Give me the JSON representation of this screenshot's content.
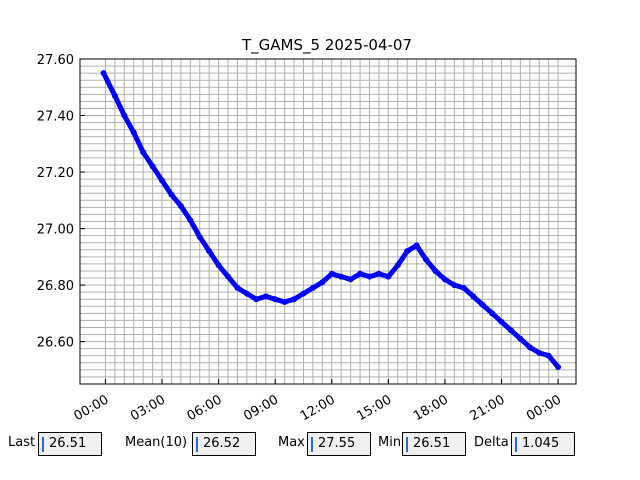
{
  "chart_data": {
    "type": "line",
    "title": "T_GAMS_5 2025-04-07",
    "xlabel": "",
    "ylabel": "",
    "x_ticks": [
      "00:00",
      "03:00",
      "06:00",
      "09:00",
      "12:00",
      "15:00",
      "18:00",
      "21:00",
      "00:00"
    ],
    "y_ticks": [
      "26.60",
      "26.80",
      "27.00",
      "27.20",
      "27.40",
      "27.60"
    ],
    "xlim_hours": [
      -1.35,
      24.95
    ],
    "ylim": [
      26.45,
      27.6
    ],
    "grid": true,
    "series_color": "#0000ff",
    "series": [
      {
        "x_hours": [
          -0.1,
          0.5,
          1.0,
          1.5,
          2.0,
          2.5,
          3.0,
          3.5,
          4.0,
          4.5,
          5.0,
          5.5,
          6.0,
          6.5,
          7.0,
          7.5,
          8.0,
          8.5,
          9.0,
          9.5,
          10.0,
          10.5,
          11.0,
          11.5,
          12.0,
          12.5,
          13.0,
          13.5,
          14.0,
          14.5,
          15.0,
          15.5,
          16.0,
          16.5,
          17.0,
          17.5,
          18.0,
          18.5,
          19.0,
          19.5,
          20.0,
          20.5,
          21.0,
          21.5,
          22.0,
          22.5,
          23.0,
          23.5,
          24.0
        ],
        "values": [
          27.55,
          27.47,
          27.4,
          27.34,
          27.27,
          27.22,
          27.17,
          27.12,
          27.08,
          27.03,
          26.97,
          26.92,
          26.87,
          26.83,
          26.79,
          26.77,
          26.75,
          26.76,
          26.75,
          26.74,
          26.75,
          26.77,
          26.79,
          26.81,
          26.84,
          26.83,
          26.82,
          26.84,
          26.83,
          26.84,
          26.83,
          26.87,
          26.92,
          26.94,
          26.89,
          26.85,
          26.82,
          26.8,
          26.79,
          26.76,
          26.73,
          26.7,
          26.67,
          26.64,
          26.61,
          26.58,
          26.56,
          26.55,
          26.51
        ]
      }
    ]
  },
  "stats": [
    {
      "label": "Last",
      "value": "26.51"
    },
    {
      "label": "Mean(10)",
      "value": "26.52"
    },
    {
      "label": "Max",
      "value": "27.55"
    },
    {
      "label": "Min",
      "value": "26.51"
    },
    {
      "label": "Delta",
      "value": "1.045"
    }
  ]
}
